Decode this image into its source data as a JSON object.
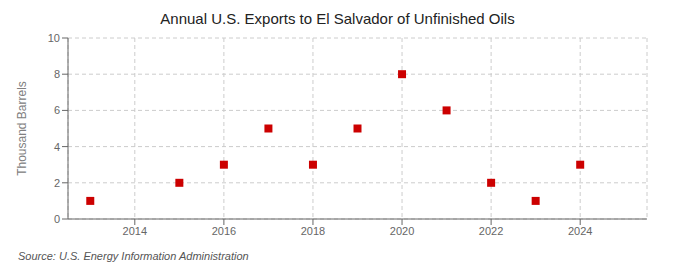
{
  "chart_data": {
    "type": "scatter",
    "title": "Annual U.S. Exports to El Salvador of Unfinished Oils",
    "ylabel": "Thousand Barrels",
    "source": "Source: U.S. Energy Information Administration",
    "x": [
      2013,
      2015,
      2016,
      2017,
      2018,
      2019,
      2020,
      2021,
      2022,
      2023,
      2024
    ],
    "values": [
      1,
      2,
      3,
      5,
      3,
      5,
      8,
      6,
      2,
      1,
      3
    ],
    "xlim": [
      2012.5,
      2025.5
    ],
    "xticks": [
      2014,
      2016,
      2018,
      2020,
      2022,
      2024
    ],
    "ylim": [
      0,
      10
    ],
    "yticks": [
      0,
      2,
      4,
      6,
      8,
      10
    ],
    "color": "#cc0000",
    "marker": "square",
    "grid": true
  }
}
